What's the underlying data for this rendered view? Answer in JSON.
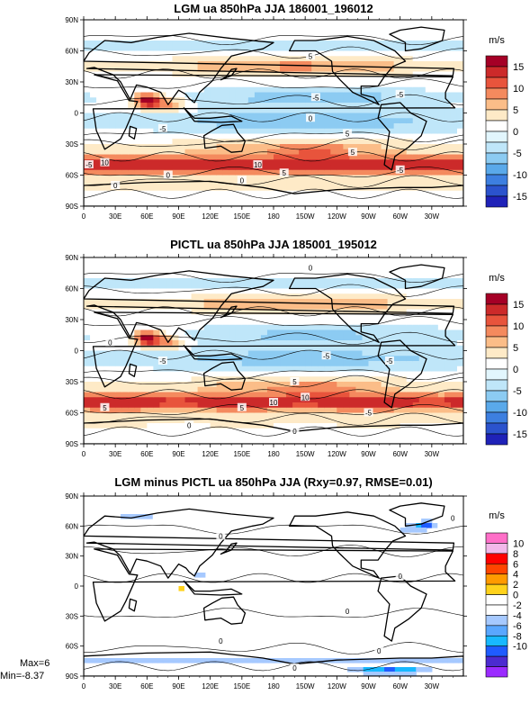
{
  "chart_data": [
    {
      "type": "heatmap",
      "title": "LGM ua 850hPa JJA 186001_196012",
      "units": "m/s",
      "xticks": [
        "0",
        "30E",
        "60E",
        "90E",
        "120E",
        "150E",
        "180",
        "150W",
        "120W",
        "90W",
        "60W",
        "30W"
      ],
      "yticks": [
        "90N",
        "60N",
        "30N",
        "0",
        "30S",
        "60S",
        "90S"
      ],
      "colorbar": [
        "15",
        "10",
        "5",
        "0",
        "-5",
        "-10",
        "-15"
      ],
      "contour_labels": [
        "0",
        "5",
        "-5",
        "-5",
        "-5",
        "5",
        "5",
        "10",
        "-5",
        "10",
        "5",
        "-5",
        "0",
        "0",
        "0"
      ],
      "zonal_bands_ms": [
        {
          "lat": 75,
          "value": 0
        },
        {
          "lat": 45,
          "value": 6
        },
        {
          "lat": 15,
          "value": -5
        },
        {
          "lat": 0,
          "value": -5
        },
        {
          "lat": -15,
          "value": -6
        },
        {
          "lat": -35,
          "value": 4
        },
        {
          "lat": -50,
          "value": 12
        },
        {
          "lat": -70,
          "value": 2
        }
      ]
    },
    {
      "type": "heatmap",
      "title": "PICTL ua 850hPa JJA 185001_195012",
      "units": "m/s",
      "xticks": [
        "0",
        "30E",
        "60E",
        "90E",
        "120E",
        "150E",
        "180",
        "150W",
        "120W",
        "90W",
        "60W",
        "30W"
      ],
      "yticks": [
        "90N",
        "60N",
        "30N",
        "0",
        "30S",
        "60S",
        "90S"
      ],
      "colorbar": [
        "15",
        "10",
        "5",
        "0",
        "-5",
        "-10",
        "-15"
      ],
      "contour_labels": [
        "0",
        "0",
        "-5",
        "-5",
        "-5",
        "5",
        "10",
        "10",
        "5",
        "5",
        "-5",
        "0",
        "0"
      ],
      "zonal_bands_ms": [
        {
          "lat": 75,
          "value": 0
        },
        {
          "lat": 45,
          "value": 6
        },
        {
          "lat": 15,
          "value": -5
        },
        {
          "lat": 0,
          "value": -5
        },
        {
          "lat": -15,
          "value": -6
        },
        {
          "lat": -35,
          "value": 4
        },
        {
          "lat": -50,
          "value": 12
        },
        {
          "lat": -70,
          "value": 2
        }
      ]
    },
    {
      "type": "heatmap",
      "title": "LGM minus PICTL ua 850hPa JJA (Rxy=0.97, RMSE=0.01)",
      "units": "m/s",
      "xticks": [
        "0",
        "30E",
        "60E",
        "90E",
        "120E",
        "150E",
        "180",
        "150W",
        "120W",
        "90W",
        "60W",
        "30W"
      ],
      "yticks": [
        "90N",
        "60N",
        "30N",
        "0",
        "30S",
        "60S",
        "90S"
      ],
      "colorbar": [
        "10",
        "8",
        "6",
        "4",
        "2",
        "0",
        "-2",
        "-4",
        "-6",
        "-8",
        "-10"
      ],
      "contour_labels": [
        "0",
        "0",
        "0",
        "0",
        "0",
        "0",
        "0"
      ],
      "max_label": "Max=6",
      "min_label": "Min=-8.37",
      "max": 6,
      "min": -8.37
    }
  ],
  "colors": {
    "div_scale": [
      "#b2182b",
      "#d6604d",
      "#f4a582",
      "#fddbc7",
      "#ffffff",
      "#d1e5f0",
      "#92c5de",
      "#4393c3",
      "#2166ac"
    ],
    "diff_pos": [
      "#ff66cc",
      "#ff0000",
      "#ff6600",
      "#ffaa00",
      "#ffdd55",
      "#ffffff"
    ],
    "diff_neg": [
      "#ffffff",
      "#aaccff",
      "#66aaff",
      "#00bbff",
      "#0066ff",
      "#6633cc"
    ]
  }
}
